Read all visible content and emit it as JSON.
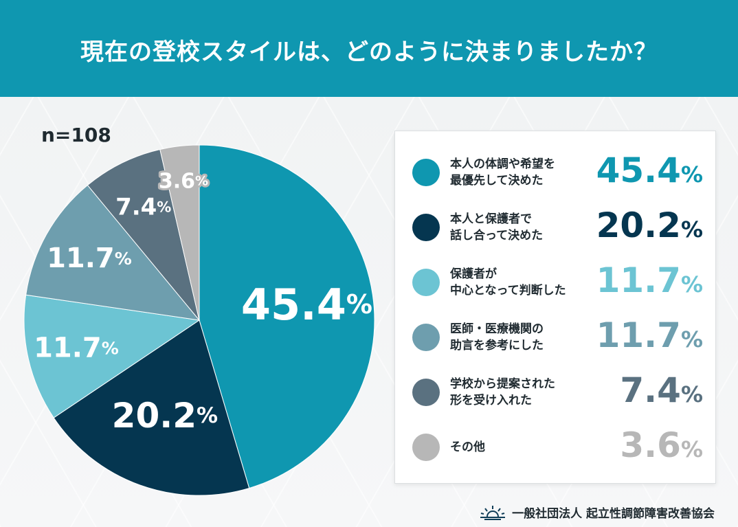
{
  "header": {
    "title": "現在の登校スタイルは、どのように決まりましたか？"
  },
  "sample": {
    "label": "n=108"
  },
  "chart_data": {
    "type": "pie",
    "title": "現在の登校スタイルは、どのように決まりましたか？",
    "unit": "%",
    "slices": [
      {
        "label": "本人の体調や希望を最優先して決めた",
        "line1": "本人の体調や希望を",
        "line2": "最優先して決めた",
        "value": 45.4,
        "display": "45.4",
        "color": "#0f97b0",
        "legend_color": "#0f97b0"
      },
      {
        "label": "本人と保護者で話し合って決めた",
        "line1": "本人と保護者で",
        "line2": "話し合って決めた",
        "value": 20.2,
        "display": "20.2",
        "color": "#053650",
        "legend_color": "#053650"
      },
      {
        "label": "保護者が中心となって判断した",
        "line1": "保護者が",
        "line2": "中心となって判断した",
        "value": 11.7,
        "display": "11.7",
        "color": "#6cc4d3",
        "legend_color": "#6cc4d3"
      },
      {
        "label": "医師・医療機関の助言を参考にした",
        "line1": "医師・医療機関の",
        "line2": "助言を参考にした",
        "value": 11.7,
        "display": "11.7",
        "color": "#6e9eae",
        "legend_color": "#6e9eae"
      },
      {
        "label": "学校から提案された形を受け入れた",
        "line1": "学校から提案された",
        "line2": "形を受け入れた",
        "value": 7.4,
        "display": "7.4",
        "color": "#5a7180",
        "legend_color": "#5a7180"
      },
      {
        "label": "その他",
        "line1": "その他",
        "line2": "",
        "value": 3.6,
        "display": "3.6",
        "color": "#b7b7b7",
        "legend_color": "#b7b7b7"
      }
    ]
  },
  "footer": {
    "org": "一般社団法人 起立性調節障害改善協会",
    "logo_icon": "sunrise-logo-icon"
  }
}
